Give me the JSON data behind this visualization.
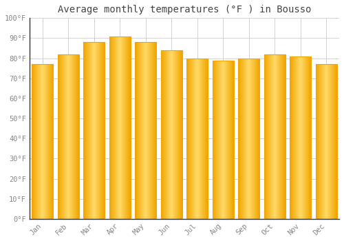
{
  "title": "Average monthly temperatures (°F ) in Bousso",
  "months": [
    "Jan",
    "Feb",
    "Mar",
    "Apr",
    "May",
    "Jun",
    "Jul",
    "Aug",
    "Sep",
    "Oct",
    "Nov",
    "Dec"
  ],
  "values": [
    77,
    82,
    88,
    91,
    88,
    84,
    80,
    79,
    80,
    82,
    81,
    77
  ],
  "bar_color_center": "#FFD966",
  "bar_color_edge": "#F0A500",
  "background_color": "#FFFFFF",
  "grid_color": "#CCCCCC",
  "text_color": "#888888",
  "title_color": "#444444",
  "ylim": [
    0,
    100
  ],
  "yticks": [
    0,
    10,
    20,
    30,
    40,
    50,
    60,
    70,
    80,
    90,
    100
  ],
  "ytick_labels": [
    "0°F",
    "10°F",
    "20°F",
    "30°F",
    "40°F",
    "50°F",
    "60°F",
    "70°F",
    "80°F",
    "90°F",
    "100°F"
  ],
  "title_fontsize": 10,
  "tick_fontsize": 7.5,
  "figsize": [
    5.0,
    3.5
  ],
  "dpi": 100,
  "bar_width": 0.82
}
